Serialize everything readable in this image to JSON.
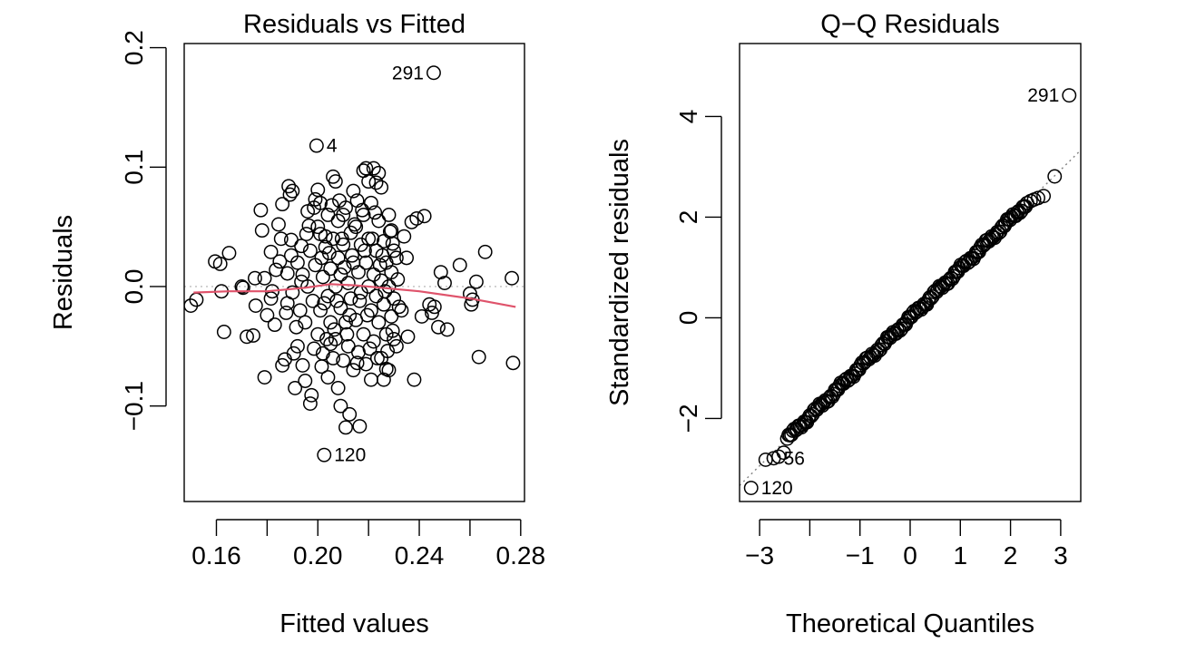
{
  "chart_data": [
    {
      "type": "scatter",
      "title": "Residuals vs Fitted",
      "xlabel": "Fitted values",
      "ylabel": "Residuals",
      "xlim": [
        0.1473,
        0.2815
      ],
      "ylim": [
        -0.18,
        0.2035
      ],
      "xticks": [
        {
          "value": 0.16,
          "label": "0.16"
        },
        {
          "value": 0.18,
          "label": ""
        },
        {
          "value": 0.2,
          "label": "0.20"
        },
        {
          "value": 0.22,
          "label": ""
        },
        {
          "value": 0.24,
          "label": "0.24"
        },
        {
          "value": 0.26,
          "label": ""
        },
        {
          "value": 0.28,
          "label": "0.28"
        }
      ],
      "yticks": [
        {
          "value": -0.1,
          "label": "−0.1"
        },
        {
          "value": 0.0,
          "label": "0.0"
        },
        {
          "value": 0.1,
          "label": "0.1"
        },
        {
          "value": 0.2,
          "label": "0.2"
        }
      ],
      "reference_line": {
        "y": 0,
        "style": "dotted",
        "color": "#bebebe"
      },
      "smooth_line": {
        "color": "#df536b",
        "points": [
          [
            0.151,
            -0.005
          ],
          [
            0.165,
            -0.004
          ],
          [
            0.18,
            -0.004
          ],
          [
            0.195,
            -0.001
          ],
          [
            0.205,
            0.002
          ],
          [
            0.215,
            0.001
          ],
          [
            0.225,
            -0.001
          ],
          [
            0.24,
            -0.004
          ],
          [
            0.26,
            -0.01
          ],
          [
            0.278,
            -0.017
          ]
        ]
      },
      "labeled_points": [
        {
          "x": 0.2457,
          "y": 0.179,
          "label": "291",
          "side": "left"
        },
        {
          "x": 0.1995,
          "y": 0.118,
          "label": "4",
          "side": "right"
        },
        {
          "x": 0.2025,
          "y": -0.141,
          "label": "120",
          "side": "right"
        }
      ],
      "points": [
        [
          0.2457,
          0.179
        ],
        [
          0.1995,
          0.118
        ],
        [
          0.2025,
          -0.141
        ],
        [
          0.1499,
          -0.016
        ],
        [
          0.1521,
          -0.011
        ],
        [
          0.1595,
          0.021
        ],
        [
          0.1615,
          0.019
        ],
        [
          0.165,
          0.028
        ],
        [
          0.162,
          -0.004
        ],
        [
          0.163,
          -0.038
        ],
        [
          0.17,
          0.0
        ],
        [
          0.1705,
          -0.001
        ],
        [
          0.172,
          -0.042
        ],
        [
          0.1745,
          -0.041
        ],
        [
          0.1755,
          -0.016
        ],
        [
          0.1752,
          0.007
        ],
        [
          0.1775,
          0.064
        ],
        [
          0.178,
          0.047
        ],
        [
          0.179,
          0.007
        ],
        [
          0.179,
          -0.076
        ],
        [
          0.18,
          -0.024
        ],
        [
          0.1815,
          0.029
        ],
        [
          0.182,
          -0.004
        ],
        [
          0.183,
          -0.032
        ],
        [
          0.1845,
          0.052
        ],
        [
          0.185,
          0.021
        ],
        [
          0.186,
          -0.066
        ],
        [
          0.187,
          -0.061
        ],
        [
          0.186,
          0.069
        ],
        [
          0.1885,
          0.084
        ],
        [
          0.189,
          0.077
        ],
        [
          0.19,
          0.08
        ],
        [
          0.1905,
          -0.056
        ],
        [
          0.191,
          -0.085
        ],
        [
          0.188,
          -0.014
        ],
        [
          0.1895,
          0.039
        ],
        [
          0.192,
          -0.05
        ],
        [
          0.1935,
          0.034
        ],
        [
          0.194,
          -0.066
        ],
        [
          0.195,
          -0.079
        ],
        [
          0.196,
          0.063
        ],
        [
          0.1965,
          0.051
        ],
        [
          0.197,
          -0.098
        ],
        [
          0.1975,
          -0.091
        ],
        [
          0.1985,
          0.066
        ],
        [
          0.199,
          0.073
        ],
        [
          0.2,
          0.081
        ],
        [
          0.201,
          0.07
        ],
        [
          0.2015,
          -0.067
        ],
        [
          0.203,
          0.042
        ],
        [
          0.204,
          -0.076
        ],
        [
          0.205,
          -0.048
        ],
        [
          0.206,
          0.092
        ],
        [
          0.207,
          0.088
        ],
        [
          0.208,
          -0.085
        ],
        [
          0.209,
          -0.1
        ],
        [
          0.21,
          0.06
        ],
        [
          0.211,
          -0.118
        ],
        [
          0.2125,
          -0.107
        ],
        [
          0.214,
          0.08
        ],
        [
          0.2155,
          0.072
        ],
        [
          0.2165,
          -0.117
        ],
        [
          0.218,
          0.097
        ],
        [
          0.219,
          0.099
        ],
        [
          0.22,
          0.088
        ],
        [
          0.221,
          -0.078
        ],
        [
          0.222,
          0.099
        ],
        [
          0.223,
          0.087
        ],
        [
          0.224,
          0.095
        ],
        [
          0.225,
          0.083
        ],
        [
          0.226,
          -0.078
        ],
        [
          0.227,
          -0.069
        ],
        [
          0.228,
          0.06
        ],
        [
          0.229,
          0.047
        ],
        [
          0.2295,
          -0.037
        ],
        [
          0.23,
          -0.044
        ],
        [
          0.231,
          0.024
        ],
        [
          0.232,
          -0.017
        ],
        [
          0.233,
          -0.02
        ],
        [
          0.234,
          0.042
        ],
        [
          0.235,
          0.024
        ],
        [
          0.2355,
          -0.042
        ],
        [
          0.237,
          0.054
        ],
        [
          0.238,
          -0.078
        ],
        [
          0.239,
          0.057
        ],
        [
          0.241,
          -0.025
        ],
        [
          0.242,
          0.059
        ],
        [
          0.244,
          -0.015
        ],
        [
          0.245,
          -0.022
        ],
        [
          0.246,
          -0.017
        ],
        [
          0.2475,
          -0.034
        ],
        [
          0.2485,
          0.012
        ],
        [
          0.25,
          0.003
        ],
        [
          0.251,
          -0.036
        ],
        [
          0.256,
          0.018
        ],
        [
          0.26,
          -0.006
        ],
        [
          0.2605,
          -0.015
        ],
        [
          0.261,
          -0.011
        ],
        [
          0.2625,
          0.004
        ],
        [
          0.2635,
          -0.059
        ],
        [
          0.266,
          0.029
        ],
        [
          0.2765,
          0.007
        ],
        [
          0.277,
          -0.064
        ],
        [
          0.188,
          0.011
        ],
        [
          0.19,
          -0.005
        ],
        [
          0.192,
          0.02
        ],
        [
          0.193,
          -0.02
        ],
        [
          0.194,
          0.01
        ],
        [
          0.195,
          -0.03
        ],
        [
          0.196,
          0.0
        ],
        [
          0.197,
          0.03
        ],
        [
          0.198,
          -0.012
        ],
        [
          0.199,
          0.018
        ],
        [
          0.2,
          -0.04
        ],
        [
          0.2,
          0.05
        ],
        [
          0.201,
          -0.02
        ],
        [
          0.202,
          0.008
        ],
        [
          0.202,
          -0.056
        ],
        [
          0.203,
          0.033
        ],
        [
          0.204,
          -0.008
        ],
        [
          0.204,
          0.06
        ],
        [
          0.205,
          0.015
        ],
        [
          0.205,
          -0.03
        ],
        [
          0.206,
          -0.06
        ],
        [
          0.206,
          0.04
        ],
        [
          0.207,
          0.0
        ],
        [
          0.207,
          -0.044
        ],
        [
          0.208,
          0.024
        ],
        [
          0.208,
          0.055
        ],
        [
          0.209,
          -0.018
        ],
        [
          0.209,
          0.01
        ],
        [
          0.21,
          -0.062
        ],
        [
          0.21,
          0.035
        ],
        [
          0.211,
          -0.03
        ],
        [
          0.211,
          0.066
        ],
        [
          0.212,
          0.003
        ],
        [
          0.212,
          -0.05
        ],
        [
          0.213,
          0.045
        ],
        [
          0.213,
          -0.01
        ],
        [
          0.214,
          -0.07
        ],
        [
          0.214,
          0.02
        ],
        [
          0.215,
          0.05
        ],
        [
          0.215,
          -0.028
        ],
        [
          0.216,
          0.012
        ],
        [
          0.216,
          -0.055
        ],
        [
          0.217,
          0.035
        ],
        [
          0.217,
          -0.005
        ],
        [
          0.218,
          -0.04
        ],
        [
          0.218,
          0.06
        ],
        [
          0.219,
          0.02
        ],
        [
          0.219,
          -0.065
        ],
        [
          0.22,
          0.0
        ],
        [
          0.22,
          0.04
        ],
        [
          0.221,
          -0.02
        ],
        [
          0.221,
          0.07
        ],
        [
          0.222,
          0.01
        ],
        [
          0.222,
          -0.046
        ],
        [
          0.223,
          0.03
        ],
        [
          0.223,
          -0.008
        ],
        [
          0.224,
          0.055
        ],
        [
          0.224,
          -0.03
        ],
        [
          0.225,
          0.005
        ],
        [
          0.225,
          -0.06
        ],
        [
          0.226,
          0.038
        ],
        [
          0.226,
          -0.015
        ],
        [
          0.227,
          0.02
        ],
        [
          0.227,
          -0.04
        ],
        [
          0.228,
          0.0
        ],
        [
          0.228,
          -0.07
        ],
        [
          0.229,
          0.012
        ],
        [
          0.229,
          -0.025
        ],
        [
          0.23,
          0.03
        ],
        [
          0.23,
          -0.01
        ],
        [
          0.231,
          -0.05
        ],
        [
          0.2315,
          0.006
        ],
        [
          0.201,
          0.044
        ],
        [
          0.2025,
          -0.014
        ],
        [
          0.2045,
          0.028
        ],
        [
          0.2065,
          -0.036
        ],
        [
          0.2085,
          0.072
        ],
        [
          0.2105,
          0.016
        ],
        [
          0.2125,
          -0.024
        ],
        [
          0.2145,
          0.052
        ],
        [
          0.2165,
          -0.012
        ],
        [
          0.2185,
          0.03
        ],
        [
          0.2205,
          -0.052
        ],
        [
          0.2225,
          0.062
        ],
        [
          0.2245,
          0.018
        ],
        [
          0.2265,
          -0.004
        ],
        [
          0.2285,
          0.046
        ],
        [
          0.1985,
          -0.052
        ],
        [
          0.2015,
          0.024
        ],
        [
          0.2035,
          -0.044
        ],
        [
          0.2055,
          0.068
        ],
        [
          0.2075,
          -0.012
        ],
        [
          0.2095,
          0.04
        ],
        [
          0.2115,
          -0.04
        ],
        [
          0.2135,
          0.026
        ],
        [
          0.2155,
          -0.064
        ],
        [
          0.2175,
          0.064
        ],
        [
          0.2195,
          -0.024
        ],
        [
          0.2215,
          0.04
        ],
        [
          0.2235,
          -0.06
        ],
        [
          0.2255,
          0.026
        ],
        [
          0.2275,
          -0.054
        ],
        [
          0.2295,
          0.036
        ],
        [
          0.1955,
          0.044
        ],
        [
          0.1935,
          0.004
        ],
        [
          0.1915,
          -0.034
        ],
        [
          0.1895,
          0.026
        ],
        [
          0.1875,
          -0.022
        ],
        [
          0.1855,
          0.04
        ],
        [
          0.1835,
          0.014
        ],
        [
          0.1815,
          -0.01
        ]
      ]
    },
    {
      "type": "scatter",
      "title": "Q−Q Residuals",
      "xlabel": "Theoretical Quantiles",
      "ylabel": "Standardized residuals",
      "xlim": [
        -3.4,
        3.4
      ],
      "ylim": [
        -3.65,
        5.45
      ],
      "xticks": [
        {
          "value": -3,
          "label": "−3"
        },
        {
          "value": -2,
          "label": ""
        },
        {
          "value": -1,
          "label": "−1"
        },
        {
          "value": 0,
          "label": "0"
        },
        {
          "value": 1,
          "label": "1"
        },
        {
          "value": 2,
          "label": "2"
        },
        {
          "value": 3,
          "label": "3"
        }
      ],
      "yticks": [
        {
          "value": -2,
          "label": "−2"
        },
        {
          "value": 0,
          "label": "0"
        },
        {
          "value": 2,
          "label": "2"
        },
        {
          "value": 4,
          "label": "4"
        }
      ],
      "reference_line": {
        "intercept": 0,
        "slope": 0.98,
        "style": "dotted",
        "color": "#808080"
      },
      "labeled_points": [
        {
          "x": 3.17,
          "y": 4.42,
          "label": "291",
          "side": "left"
        },
        {
          "x": -3.17,
          "y": -3.38,
          "label": "120",
          "side": "right"
        },
        {
          "x": -2.72,
          "y": -2.79,
          "label": "56",
          "side": "right"
        }
      ],
      "points": [
        [
          3.17,
          4.42
        ],
        [
          -3.17,
          -3.38
        ],
        [
          -2.72,
          -2.79
        ],
        [
          -2.88,
          -2.82
        ],
        [
          -2.62,
          -2.76
        ],
        [
          -2.52,
          -2.68
        ],
        [
          2.88,
          2.81
        ],
        [
          2.66,
          2.42
        ],
        [
          2.55,
          2.38
        ],
        [
          2.47,
          2.35
        ],
        [
          2.4,
          2.32
        ],
        [
          2.33,
          2.28
        ]
      ],
      "qq_band": {
        "from": -2.45,
        "to": 2.3,
        "count": 170,
        "slope": 0.98
      }
    }
  ]
}
